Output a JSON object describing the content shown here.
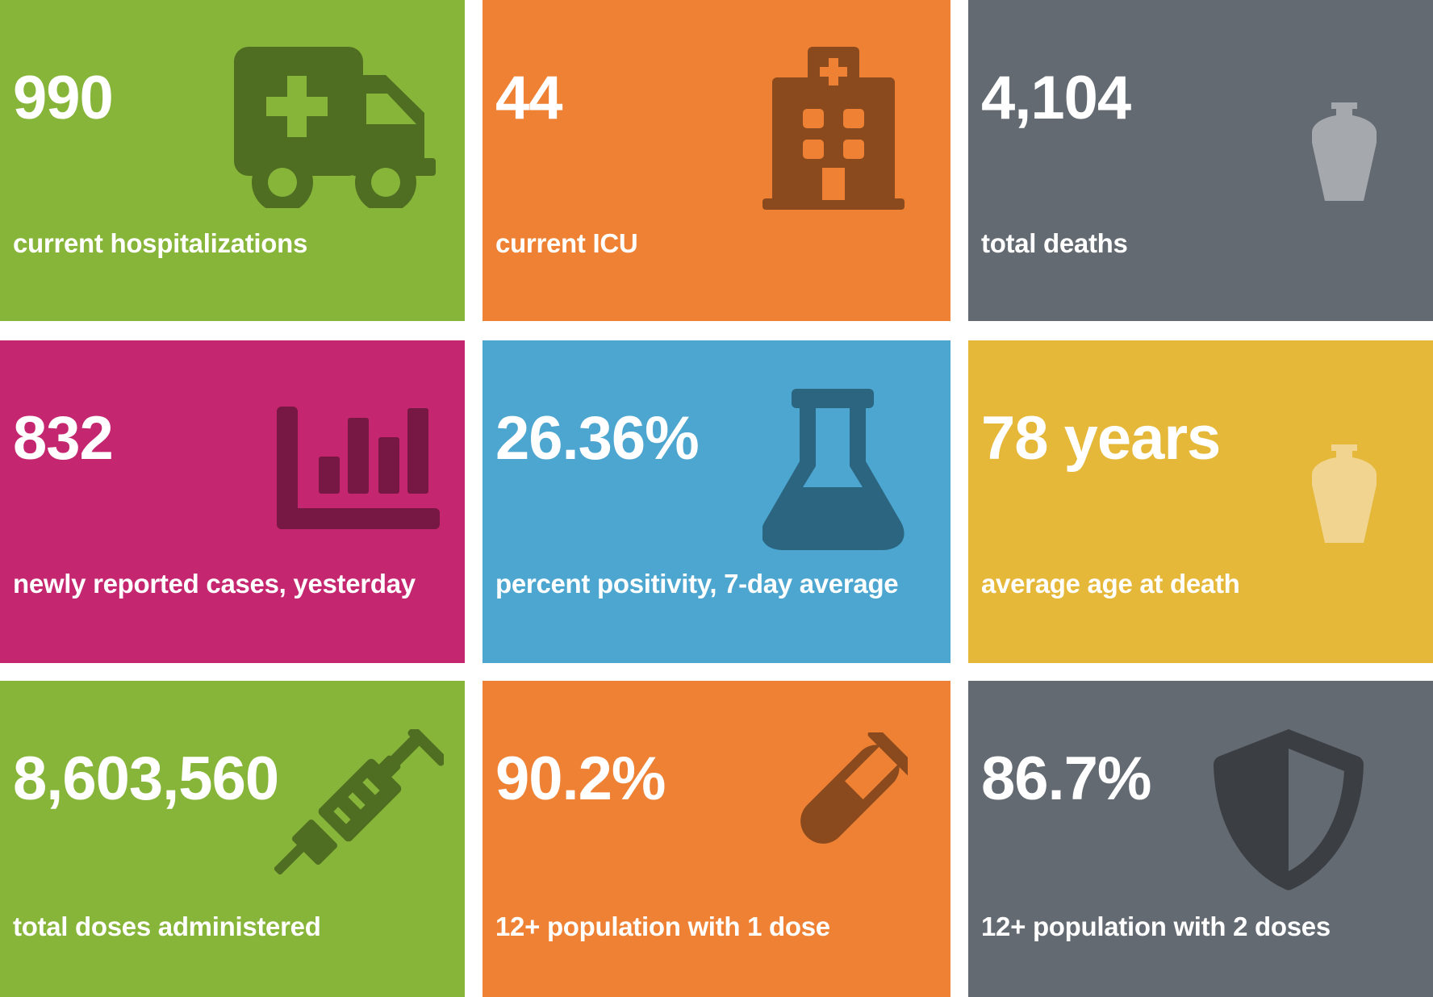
{
  "colors": {
    "green": "#87B53A",
    "orange": "#EE8133",
    "gray": "#646A72",
    "magenta": "#C4276F",
    "blue": "#4CA6D0",
    "yellow": "#E5B83A"
  },
  "tiles": [
    {
      "value": "990",
      "label": "current hospitalizations",
      "icon": "ambulance-icon",
      "color": "#87B53A"
    },
    {
      "value": "44",
      "label": "current ICU",
      "icon": "hospital-icon",
      "color": "#EE8133"
    },
    {
      "value": "4,104",
      "label": "total deaths",
      "icon": "urn-icon",
      "color": "#646A72"
    },
    {
      "value": "832",
      "label": "newly reported cases, yesterday",
      "icon": "bar-chart-icon",
      "color": "#C4276F"
    },
    {
      "value": "26.36%",
      "label": "percent positivity, 7-day average",
      "icon": "flask-icon",
      "color": "#4CA6D0"
    },
    {
      "value": "78 years",
      "label": "average age at death",
      "icon": "urn-icon",
      "color": "#E5B83A"
    },
    {
      "value": "8,603,560",
      "label": "total doses administered",
      "icon": "syringe-icon",
      "color": "#87B53A"
    },
    {
      "value": "90.2%",
      "label": "12+ population with 1 dose",
      "icon": "test-tube-icon",
      "color": "#EE8133"
    },
    {
      "value": "86.7%",
      "label": "12+ population with 2 doses",
      "icon": "shield-icon",
      "color": "#646A72"
    }
  ]
}
